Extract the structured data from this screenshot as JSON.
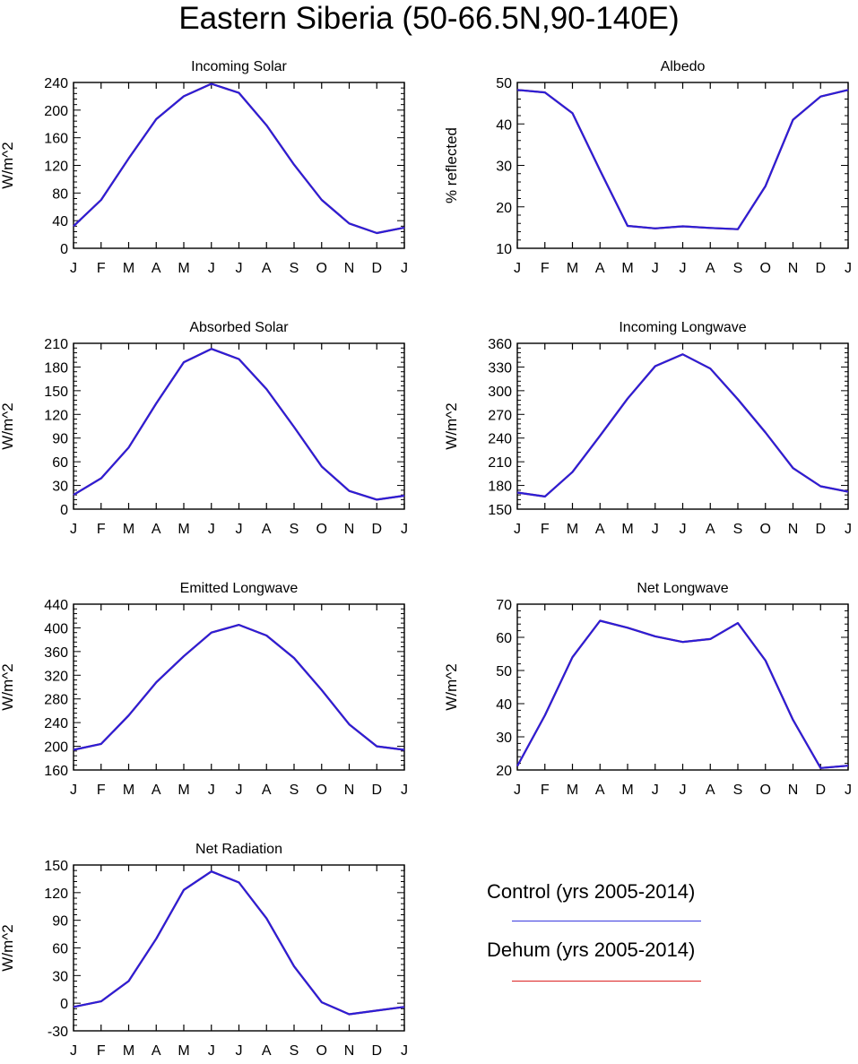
{
  "title": "Eastern Siberia (50-66.5N,90-140E)",
  "months": [
    "J",
    "F",
    "M",
    "A",
    "M",
    "J",
    "J",
    "A",
    "S",
    "O",
    "N",
    "D",
    "J"
  ],
  "series_colors": {
    "control": "#2b1fd6",
    "dehum": "#e0302a"
  },
  "legend": {
    "control_label": "Control (yrs 2005-2014)",
    "control_color": "#3a3ae0",
    "dehum_label": "Dehum (yrs 2005-2014)",
    "dehum_color": "#dd2222"
  },
  "chart_data": [
    {
      "type": "line",
      "title": "Incoming Solar",
      "ylabel": "W/m^2",
      "ylim": [
        0,
        240
      ],
      "yticks": [
        0,
        40,
        80,
        120,
        160,
        200,
        240
      ],
      "series": [
        {
          "values": [
            32,
            70,
            130,
            187,
            220,
            238,
            225,
            178,
            121,
            70,
            36,
            22,
            30
          ]
        },
        {
          "values": [
            32,
            70,
            130,
            187,
            220,
            238,
            225,
            178,
            121,
            70,
            36,
            22,
            30
          ]
        }
      ]
    },
    {
      "type": "line",
      "title": "Albedo",
      "ylabel": "% reflected",
      "ylim": [
        10,
        50
      ],
      "yticks": [
        10,
        20,
        30,
        40,
        50
      ],
      "series": [
        {
          "values": [
            48.2,
            47.6,
            42.6,
            28.8,
            15.4,
            14.8,
            15.3,
            14.9,
            14.6,
            25.0,
            41.0,
            46.6,
            48.2
          ]
        },
        {
          "values": [
            48.2,
            47.6,
            42.6,
            28.8,
            15.4,
            14.8,
            15.3,
            14.9,
            14.6,
            25.0,
            41.0,
            46.6,
            48.2
          ]
        }
      ]
    },
    {
      "type": "line",
      "title": "Absorbed Solar",
      "ylabel": "W/m^2",
      "ylim": [
        0,
        210
      ],
      "yticks": [
        0,
        30,
        60,
        90,
        120,
        150,
        180,
        210
      ],
      "series": [
        {
          "values": [
            18,
            39,
            78,
            134,
            186,
            203,
            190,
            152,
            104,
            54,
            23,
            12,
            17
          ]
        },
        {
          "values": [
            18,
            39,
            78,
            134,
            186,
            203,
            190,
            152,
            104,
            54,
            23,
            12,
            17
          ]
        }
      ]
    },
    {
      "type": "line",
      "title": "Incoming Longwave",
      "ylabel": "W/m^2",
      "ylim": [
        150,
        360
      ],
      "yticks": [
        150,
        180,
        210,
        240,
        270,
        300,
        330,
        360
      ],
      "series": [
        {
          "values": [
            171,
            166,
            197,
            243,
            290,
            331,
            346,
            328,
            289,
            247,
            202,
            179,
            172
          ]
        },
        {
          "values": [
            171,
            166,
            197,
            243,
            290,
            331,
            346,
            328,
            289,
            247,
            202,
            179,
            172
          ]
        }
      ]
    },
    {
      "type": "line",
      "title": "Emitted Longwave",
      "ylabel": "W/m^2",
      "ylim": [
        160,
        440
      ],
      "yticks": [
        160,
        200,
        240,
        280,
        320,
        360,
        400,
        440
      ],
      "series": [
        {
          "values": [
            194,
            204,
            252,
            308,
            352,
            392,
            405,
            387,
            349,
            295,
            237,
            200,
            194
          ]
        },
        {
          "values": [
            194,
            204,
            252,
            308,
            352,
            392,
            405,
            387,
            349,
            295,
            237,
            200,
            194
          ]
        }
      ]
    },
    {
      "type": "line",
      "title": "Net Longwave",
      "ylabel": "W/m^2",
      "ylim": [
        20,
        70
      ],
      "yticks": [
        20,
        30,
        40,
        50,
        60,
        70
      ],
      "series": [
        {
          "values": [
            21.2,
            36.5,
            54.0,
            65.0,
            62.9,
            60.3,
            58.6,
            59.5,
            64.3,
            53.0,
            35.1,
            20.6,
            21.3
          ]
        },
        {
          "values": [
            21.2,
            36.5,
            54.0,
            65.0,
            62.9,
            60.3,
            58.6,
            59.5,
            64.3,
            53.0,
            35.1,
            20.6,
            21.3
          ]
        }
      ]
    },
    {
      "type": "line",
      "title": "Net Radiation",
      "ylabel": "W/m^2",
      "ylim": [
        -30,
        150
      ],
      "yticks": [
        -30,
        0,
        30,
        60,
        90,
        120,
        150
      ],
      "series": [
        {
          "values": [
            -4,
            2,
            24,
            70,
            123,
            143,
            131,
            92,
            40,
            1,
            -12,
            -8,
            -4
          ]
        },
        {
          "values": [
            -4,
            2,
            24,
            70,
            123,
            143,
            131,
            92,
            40,
            1,
            -12,
            -8,
            -4
          ]
        }
      ]
    }
  ]
}
